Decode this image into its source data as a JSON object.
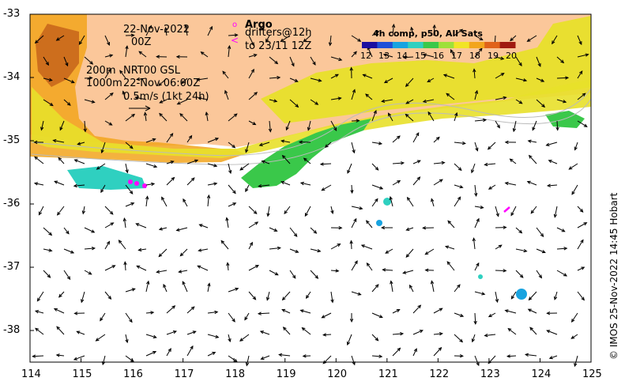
{
  "map": {
    "colors": {
      "land": "#fbc79a",
      "ocean": "#ffffff",
      "frame": "#000000",
      "argo": "#ff00ff"
    },
    "x_ticks": [
      "114",
      "115",
      "116",
      "117",
      "118",
      "119",
      "120",
      "121",
      "122",
      "123",
      "124",
      "125"
    ],
    "y_ticks": [
      "-33",
      "-34",
      "-35",
      "-36",
      "-37",
      "-38"
    ]
  },
  "annotations": {
    "date_line1": "22-Nov-2022",
    "date_line2": "00Z",
    "depth_200": "200m",
    "depth_1000": "1000m",
    "nrt_label": "NRT00 GSL",
    "nrt_time": "22-Nov 06:00Z",
    "speed_scale": "0.5m/s (1kt 24h)",
    "argo_title": "Argo",
    "drifters_line1": "drifters@12h",
    "drifters_line2": "to 23/11 12Z",
    "argo_icon": "circle-marker-icon",
    "drifter_icon": "drifter-track-icon"
  },
  "colorbar": {
    "title": "4h comp, p50, All Sats",
    "labels": [
      "12",
      "13",
      "14",
      "15",
      "16",
      "17",
      "18",
      "19",
      "20"
    ],
    "colors": [
      "#1b0fa0",
      "#1f4fd8",
      "#18a3e0",
      "#2fd0c0",
      "#3ac84a",
      "#9ee03a",
      "#f1e426",
      "#f2a51c",
      "#e0631a",
      "#a01a10"
    ]
  },
  "credit": "© IMOS 25-Nov-2022 14:45 Hobart"
}
